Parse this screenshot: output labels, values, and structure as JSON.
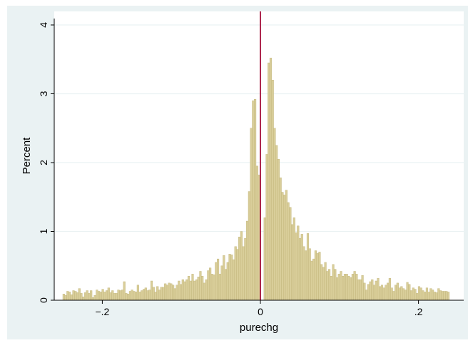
{
  "chart_data": {
    "type": "bar",
    "title": "",
    "xlabel": "purechg",
    "ylabel": "Percent",
    "xlim": [
      -0.25,
      0.25
    ],
    "ylim": [
      0,
      4
    ],
    "grid": true,
    "x_ticks": [
      {
        "value": -0.2,
        "label": "−.2"
      },
      {
        "value": 0,
        "label": "0"
      },
      {
        "value": 0.2,
        "label": ".2"
      }
    ],
    "y_ticks": [
      {
        "value": 0,
        "label": "0"
      },
      {
        "value": 1,
        "label": "1"
      },
      {
        "value": 2,
        "label": "2"
      },
      {
        "value": 3,
        "label": "3"
      },
      {
        "value": 4,
        "label": "4"
      }
    ],
    "reference_line_x": 0,
    "bin_width": 0.00247,
    "x_start": -0.25,
    "values": [
      0.09,
      0.07,
      0.13,
      0.12,
      0.08,
      0.14,
      0.13,
      0.11,
      0.17,
      0.1,
      0.05,
      0.11,
      0.14,
      0.1,
      0.14,
      0.04,
      0.07,
      0.15,
      0.13,
      0.12,
      0.16,
      0.12,
      0.14,
      0.18,
      0.11,
      0.14,
      0.1,
      0.1,
      0.15,
      0.14,
      0.15,
      0.27,
      0.1,
      0.09,
      0.13,
      0.15,
      0.13,
      0.12,
      0.22,
      0.12,
      0.14,
      0.16,
      0.18,
      0.14,
      0.15,
      0.28,
      0.19,
      0.12,
      0.2,
      0.15,
      0.19,
      0.19,
      0.24,
      0.22,
      0.25,
      0.24,
      0.22,
      0.17,
      0.22,
      0.28,
      0.23,
      0.3,
      0.27,
      0.3,
      0.35,
      0.28,
      0.38,
      0.28,
      0.3,
      0.34,
      0.42,
      0.35,
      0.25,
      0.3,
      0.43,
      0.47,
      0.38,
      0.37,
      0.55,
      0.6,
      0.38,
      0.5,
      0.65,
      0.45,
      0.55,
      0.67,
      0.66,
      0.59,
      0.78,
      0.74,
      0.92,
      1.0,
      0.78,
      0.9,
      1.15,
      1.58,
      2.5,
      2.9,
      2.92,
      1.95,
      1.82,
      0.0,
      0.0,
      1.2,
      2.12,
      3.45,
      3.52,
      3.2,
      2.5,
      2.25,
      2.05,
      1.78,
      1.57,
      1.53,
      1.6,
      1.42,
      1.35,
      1.1,
      1.2,
      0.98,
      1.08,
      0.9,
      0.96,
      0.78,
      0.72,
      0.97,
      0.75,
      0.57,
      0.6,
      0.72,
      0.68,
      0.7,
      0.52,
      0.48,
      0.55,
      0.42,
      0.45,
      0.35,
      0.52,
      0.45,
      0.33,
      0.38,
      0.42,
      0.35,
      0.38,
      0.38,
      0.35,
      0.33,
      0.38,
      0.42,
      0.38,
      0.3,
      0.3,
      0.36,
      0.25,
      0.15,
      0.23,
      0.27,
      0.3,
      0.22,
      0.28,
      0.32,
      0.2,
      0.22,
      0.18,
      0.22,
      0.25,
      0.32,
      0.18,
      0.13,
      0.22,
      0.25,
      0.18,
      0.2,
      0.17,
      0.15,
      0.26,
      0.23,
      0.14,
      0.18,
      0.16,
      0.1,
      0.2,
      0.18,
      0.14,
      0.12,
      0.18,
      0.12,
      0.17,
      0.15,
      0.12,
      0.11,
      0.17,
      0.14,
      0.13,
      0.13,
      0.13,
      0.12
    ],
    "colors": {
      "outer_background": "#eaf2f3",
      "plot_background": "#ffffff",
      "bar_fill": "#d9ce9a",
      "bar_stroke": "#bfb277",
      "gridline": "#eaf2f3",
      "reference_line": "#a50f3a",
      "axis": "#000000"
    }
  }
}
